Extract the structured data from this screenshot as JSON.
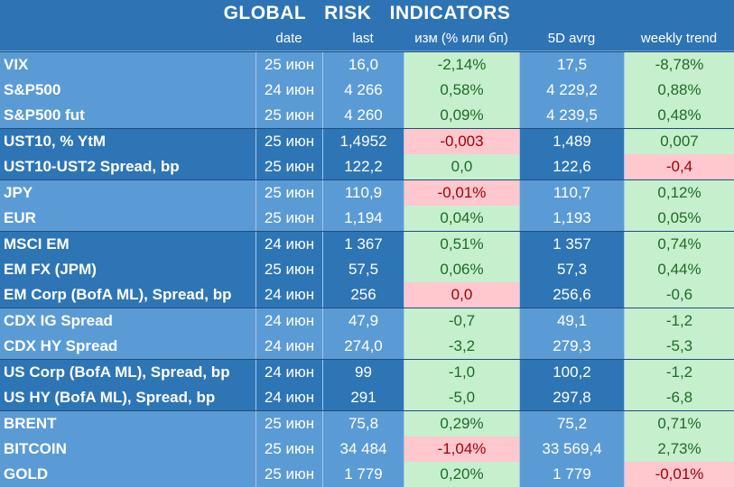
{
  "title": "GLOBAL   RISK   INDICATORS",
  "columns": [
    "",
    "date",
    "last",
    "изм (% или бп)",
    "5D avrg",
    "weekly trend"
  ],
  "rows": [
    {
      "name": "VIX",
      "date": "25 июн",
      "last": "16,0",
      "chg": "-2,14%",
      "chg_s": "pos",
      "avg": "17,5",
      "trend": "-8,78%",
      "trend_s": "pos",
      "g": "gA",
      "top": true
    },
    {
      "name": "S&P500",
      "date": "24 июн",
      "last": "4 266",
      "chg": "0,58%",
      "chg_s": "pos",
      "avg": "4 229,2",
      "trend": "0,88%",
      "trend_s": "pos",
      "g": "gA",
      "top": false
    },
    {
      "name": "S&P500 fut",
      "date": "25 июн",
      "last": "4 260",
      "chg": "0,09%",
      "chg_s": "pos",
      "avg": "4 239,5",
      "trend": "0,48%",
      "trend_s": "pos",
      "g": "gA",
      "top": false
    },
    {
      "name": "UST10, % YtM",
      "date": "25 июн",
      "last": "1,4952",
      "chg": "-0,003",
      "chg_s": "neg",
      "avg": "1,489",
      "trend": "0,007",
      "trend_s": "pos",
      "g": "gB",
      "top": true
    },
    {
      "name": "UST10-UST2 Spread, bp",
      "date": "25 июн",
      "last": "122,2",
      "chg": "0,0",
      "chg_s": "pos",
      "avg": "122,6",
      "trend": "-0,4",
      "trend_s": "neg",
      "g": "gB",
      "top": false
    },
    {
      "name": "JPY",
      "date": "25 июн",
      "last": "110,9",
      "chg": "-0,01%",
      "chg_s": "neg",
      "avg": "110,7",
      "trend": "0,12%",
      "trend_s": "pos",
      "g": "gA",
      "top": true
    },
    {
      "name": "EUR",
      "date": "25 июн",
      "last": "1,194",
      "chg": "0,04%",
      "chg_s": "pos",
      "avg": "1,193",
      "trend": "0,05%",
      "trend_s": "pos",
      "g": "gA",
      "top": false
    },
    {
      "name": "MSCI EM",
      "date": "24 июн",
      "last": "1 367",
      "chg": "0,51%",
      "chg_s": "pos",
      "avg": "1 357",
      "trend": "0,74%",
      "trend_s": "pos",
      "g": "gB",
      "top": true
    },
    {
      "name": "EM FX (JPM)",
      "date": "25 июн",
      "last": "57,5",
      "chg": "0,06%",
      "chg_s": "pos",
      "avg": "57,3",
      "trend": "0,44%",
      "trend_s": "pos",
      "g": "gB",
      "top": false
    },
    {
      "name": "EM Corp (BofA ML), Spread, bp",
      "date": "24 июн",
      "last": "256",
      "chg": "0,0",
      "chg_s": "neg",
      "avg": "256,6",
      "trend": "-0,6",
      "trend_s": "pos",
      "g": "gB",
      "top": false
    },
    {
      "name": "CDX IG Spread",
      "date": "24 июн",
      "last": "47,9",
      "chg": "-0,7",
      "chg_s": "pos",
      "avg": "49,1",
      "trend": "-1,2",
      "trend_s": "pos",
      "g": "gA",
      "top": true
    },
    {
      "name": "CDX HY Spread",
      "date": "24 июн",
      "last": "274,0",
      "chg": "-3,2",
      "chg_s": "pos",
      "avg": "279,3",
      "trend": "-5,3",
      "trend_s": "pos",
      "g": "gA",
      "top": false
    },
    {
      "name": "US Corp (BofA ML), Spread, bp",
      "date": "24 июн",
      "last": "99",
      "chg": "-1,0",
      "chg_s": "pos",
      "avg": "100,2",
      "trend": "-1,2",
      "trend_s": "pos",
      "g": "gB",
      "top": true
    },
    {
      "name": "US HY (BofA ML), Spread, bp",
      "date": "24 июн",
      "last": "291",
      "chg": "-5,0",
      "chg_s": "pos",
      "avg": "297,8",
      "trend": "-6,8",
      "trend_s": "pos",
      "g": "gB",
      "top": false
    },
    {
      "name": "BRENT",
      "date": "25 июн",
      "last": "75,8",
      "chg": "0,29%",
      "chg_s": "pos",
      "avg": "75,2",
      "trend": "0,71%",
      "trend_s": "pos",
      "g": "gA",
      "top": true
    },
    {
      "name": "BITCOIN",
      "date": "25 июн",
      "last": "34 484",
      "chg": "-1,04%",
      "chg_s": "neg",
      "avg": "33 569,4",
      "trend": "2,73%",
      "trend_s": "pos",
      "g": "gA",
      "top": false
    },
    {
      "name": "GOLD",
      "date": "25 июн",
      "last": "1 779",
      "chg": "0,20%",
      "chg_s": "pos",
      "avg": "1 779",
      "trend": "-0,01%",
      "trend_s": "neg",
      "g": "gA",
      "top": false
    }
  ]
}
